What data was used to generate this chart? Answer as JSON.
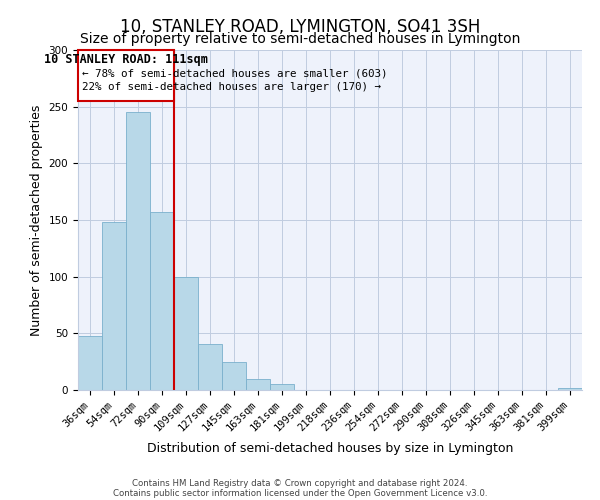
{
  "title": "10, STANLEY ROAD, LYMINGTON, SO41 3SH",
  "subtitle": "Size of property relative to semi-detached houses in Lymington",
  "xlabel": "Distribution of semi-detached houses by size in Lymington",
  "ylabel": "Number of semi-detached properties",
  "bar_labels": [
    "36sqm",
    "54sqm",
    "72sqm",
    "90sqm",
    "109sqm",
    "127sqm",
    "145sqm",
    "163sqm",
    "181sqm",
    "199sqm",
    "218sqm",
    "236sqm",
    "254sqm",
    "272sqm",
    "290sqm",
    "308sqm",
    "326sqm",
    "345sqm",
    "363sqm",
    "381sqm",
    "399sqm"
  ],
  "bar_values": [
    48,
    148,
    245,
    157,
    100,
    41,
    25,
    10,
    5,
    0,
    0,
    0,
    0,
    0,
    0,
    0,
    0,
    0,
    0,
    0,
    2
  ],
  "bar_color": "#b8d8e8",
  "bar_edge_color": "#7ab0cc",
  "vline_color": "#cc0000",
  "annotation_title": "10 STANLEY ROAD: 111sqm",
  "annotation_line1": "← 78% of semi-detached houses are smaller (603)",
  "annotation_line2": "22% of semi-detached houses are larger (170) →",
  "annotation_box_color": "#cc0000",
  "ylim": [
    0,
    300
  ],
  "yticks": [
    0,
    50,
    100,
    150,
    200,
    250,
    300
  ],
  "footer1": "Contains HM Land Registry data © Crown copyright and database right 2024.",
  "footer2": "Contains public sector information licensed under the Open Government Licence v3.0.",
  "bg_color": "#eef2fb",
  "title_fontsize": 12,
  "subtitle_fontsize": 10,
  "axis_label_fontsize": 9,
  "tick_fontsize": 7.5
}
